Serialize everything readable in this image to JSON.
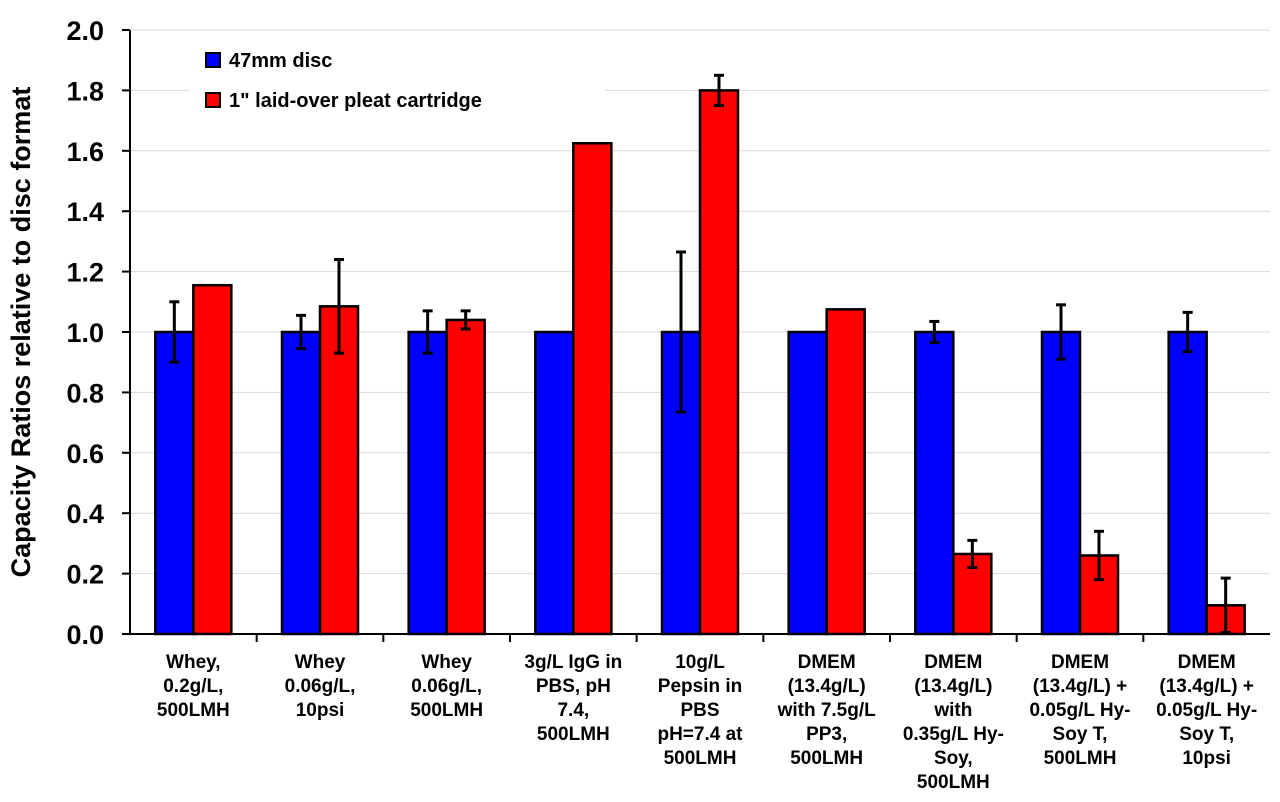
{
  "chart_data": {
    "type": "bar",
    "title": "",
    "xlabel": "",
    "ylabel": "Capacity Ratios relative to disc format",
    "ylim": [
      0,
      2.0
    ],
    "yticks": [
      "0.0",
      "0.2",
      "0.4",
      "0.6",
      "0.8",
      "1.0",
      "1.2",
      "1.4",
      "1.6",
      "1.8",
      "2.0"
    ],
    "grid": true,
    "legend_position": "top-left",
    "categories": [
      [
        "Whey,",
        "0.2g/L,",
        "500LMH"
      ],
      [
        "Whey",
        "0.06g/L,",
        "10psi"
      ],
      [
        "Whey",
        "0.06g/L,",
        "500LMH"
      ],
      [
        "3g/L IgG in",
        "PBS, pH",
        "7.4,",
        "500LMH"
      ],
      [
        "10g/L",
        "Pepsin in",
        "PBS",
        "pH=7.4 at",
        "500LMH"
      ],
      [
        "DMEM",
        "(13.4g/L)",
        "with 7.5g/L",
        "PP3,",
        "500LMH"
      ],
      [
        "DMEM",
        "(13.4g/L)",
        "with",
        "0.35g/L Hy-",
        "Soy,",
        "500LMH"
      ],
      [
        "DMEM",
        "(13.4g/L) +",
        "0.05g/L Hy-",
        "Soy T,",
        "500LMH"
      ],
      [
        "DMEM",
        "(13.4g/L) +",
        "0.05g/L Hy-",
        "Soy T,",
        "10psi"
      ]
    ],
    "series": [
      {
        "name": "47mm disc",
        "color": "#0000FF",
        "values": [
          1.0,
          1.0,
          1.0,
          1.0,
          1.0,
          1.0,
          1.0,
          1.0,
          1.0
        ],
        "errors": [
          0.1,
          0.055,
          0.07,
          null,
          0.265,
          null,
          0.035,
          0.09,
          0.065
        ]
      },
      {
        "name": "1\" laid-over pleat cartridge",
        "color": "#FF0000",
        "values": [
          1.155,
          1.085,
          1.04,
          1.625,
          1.8,
          1.075,
          0.265,
          0.26,
          0.095
        ],
        "errors": [
          null,
          0.155,
          0.03,
          null,
          0.05,
          null,
          0.045,
          0.08,
          0.09
        ]
      }
    ]
  }
}
